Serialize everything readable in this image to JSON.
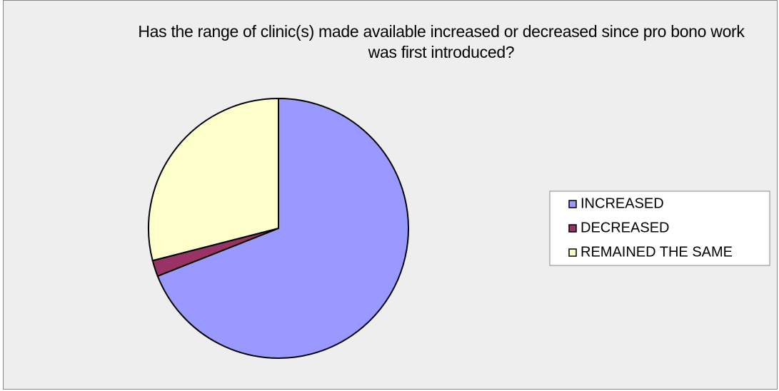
{
  "chart_data": {
    "type": "pie",
    "title": "Has the range of clinic(s) made available increased or decreased since pro bono work was first introduced?",
    "categories": [
      "INCREASED",
      "DECREASED",
      "REMAINED THE SAME"
    ],
    "values": [
      69,
      2,
      29
    ],
    "colors": [
      "#9999ff",
      "#993366",
      "#ffffcc"
    ],
    "legend": "right"
  }
}
